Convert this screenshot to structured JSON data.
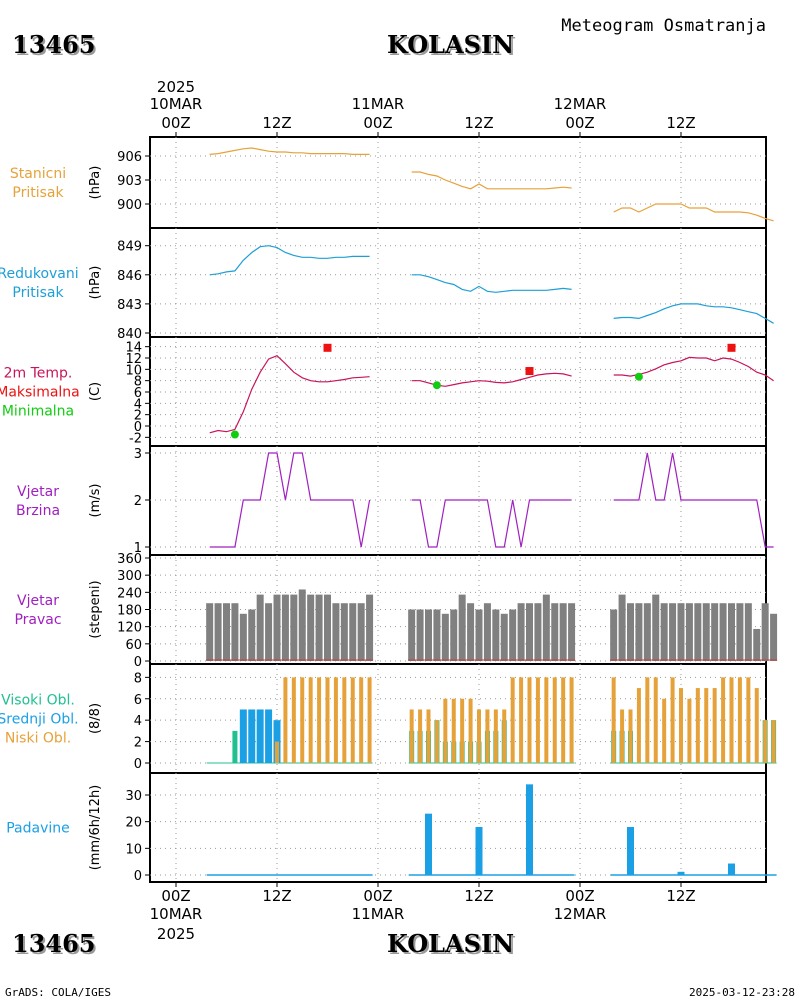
{
  "header": {
    "station_id": "13465",
    "station_name": "KOLASIN",
    "subtitle": "Meteogram Osmatranja"
  },
  "footer": {
    "credit": "GrADS: COLA/IGES",
    "timestamp": "2025-03-12-23:28"
  },
  "time_axis": {
    "top_year": "2025",
    "bottom_year": "2025",
    "dates": [
      "10MAR",
      "11MAR",
      "12MAR"
    ],
    "hours": [
      "00Z",
      "12Z",
      "00Z",
      "12Z",
      "00Z",
      "12Z"
    ]
  },
  "colors": {
    "pressure": "#e6a23a",
    "reduced": "#1e9fd6",
    "temp": "#c8145a",
    "tmax": "#ee1111",
    "tmin": "#11cc11",
    "wind": "#a020c0",
    "dir_bar": "#808080",
    "high_cloud": "#20c090",
    "mid_cloud": "#1ba0e6",
    "low_cloud": "#e6a23a",
    "precip": "#1ba0e6"
  },
  "chart_data": [
    {
      "type": "line",
      "panel": "pressure",
      "label_lines": [
        "Stanicni",
        "Pritisak"
      ],
      "unit": "(hPa)",
      "yticks": [
        "906",
        "903",
        "900"
      ],
      "ylim": [
        898,
        907.5
      ],
      "x_hours": [
        [
          4,
          5,
          6,
          7,
          8,
          9,
          10,
          11,
          12,
          13,
          14,
          15,
          16,
          17,
          18,
          19,
          20,
          21,
          22,
          23
        ],
        [
          28,
          29,
          30,
          31,
          32,
          33,
          34,
          35,
          36,
          37,
          38,
          39,
          40,
          41,
          42,
          43,
          44,
          45,
          46,
          47
        ],
        [
          52,
          53,
          54,
          55,
          56,
          57,
          58,
          59,
          60,
          61,
          62,
          63,
          64,
          65,
          66,
          67,
          68,
          69,
          70,
          71
        ]
      ],
      "values": [
        [
          906.2,
          906.3,
          906.5,
          906.7,
          906.9,
          907.0,
          906.8,
          906.6,
          906.5,
          906.5,
          906.4,
          906.4,
          906.3,
          906.3,
          906.3,
          906.3,
          906.3,
          906.2,
          906.2,
          906.2
        ],
        [
          904.0,
          904.0,
          903.7,
          903.5,
          903.0,
          902.6,
          902.2,
          901.9,
          902.5,
          901.9,
          901.9,
          901.9,
          901.9,
          901.9,
          901.9,
          901.9,
          901.9,
          902.0,
          902.1,
          902.0
        ],
        [
          899.0,
          899.5,
          899.5,
          899.0,
          899.5,
          900.0,
          900.0,
          900.0,
          900.0,
          899.5,
          899.5,
          899.5,
          899.0,
          899.0,
          899.0,
          899.0,
          898.9,
          898.6,
          898.2,
          897.9
        ]
      ]
    },
    {
      "type": "line",
      "panel": "reduced",
      "label_lines": [
        "Redukovani",
        "Pritisak"
      ],
      "unit": "(hPa)",
      "yticks": [
        "849",
        "846",
        "843",
        "840"
      ],
      "ylim": [
        840,
        850
      ],
      "x_hours": [
        [
          4,
          5,
          6,
          7,
          8,
          9,
          10,
          11,
          12,
          13,
          14,
          15,
          16,
          17,
          18,
          19,
          20,
          21,
          22,
          23
        ],
        [
          28,
          29,
          30,
          31,
          32,
          33,
          34,
          35,
          36,
          37,
          38,
          39,
          40,
          41,
          42,
          43,
          44,
          45,
          46,
          47
        ],
        [
          52,
          53,
          54,
          55,
          56,
          57,
          58,
          59,
          60,
          61,
          62,
          63,
          64,
          65,
          66,
          67,
          68,
          69,
          70,
          71
        ]
      ],
      "values": [
        [
          846.0,
          846.1,
          846.3,
          846.4,
          847.5,
          848.3,
          848.9,
          849.0,
          848.8,
          848.3,
          848.0,
          847.8,
          847.8,
          847.7,
          847.7,
          847.8,
          847.8,
          847.9,
          847.9,
          847.9
        ],
        [
          846.0,
          846.0,
          845.8,
          845.5,
          845.2,
          845.0,
          844.5,
          844.3,
          844.8,
          844.3,
          844.2,
          844.3,
          844.4,
          844.4,
          844.4,
          844.4,
          844.4,
          844.5,
          844.6,
          844.5
        ],
        [
          841.5,
          841.6,
          841.6,
          841.5,
          841.8,
          842.1,
          842.5,
          842.8,
          843.0,
          843.0,
          843.0,
          842.8,
          842.7,
          842.7,
          842.6,
          842.4,
          842.2,
          842.0,
          841.5,
          841.0
        ]
      ]
    },
    {
      "type": "line",
      "panel": "temperature",
      "label_lines": [
        "2m Temp.",
        "Maksimalna",
        "Minimalna"
      ],
      "unit": "(C)",
      "yticks": [
        "14",
        "12",
        "10",
        "8",
        "6",
        "4",
        "2",
        "0",
        "-2"
      ],
      "ylim": [
        -3,
        15
      ],
      "x_hours": [
        [
          4,
          5,
          6,
          7,
          8,
          9,
          10,
          11,
          12,
          13,
          14,
          15,
          16,
          17,
          18,
          19,
          20,
          21,
          22,
          23
        ],
        [
          28,
          29,
          30,
          31,
          32,
          33,
          34,
          35,
          36,
          37,
          38,
          39,
          40,
          41,
          42,
          43,
          44,
          45,
          46,
          47
        ],
        [
          52,
          53,
          54,
          55,
          56,
          57,
          58,
          59,
          60,
          61,
          62,
          63,
          64,
          65,
          66,
          67,
          68,
          69,
          70,
          71
        ]
      ],
      "values": [
        [
          -1.2,
          -0.8,
          -1.0,
          -0.6,
          2.5,
          6.5,
          9.5,
          11.8,
          12.4,
          11.0,
          9.5,
          8.5,
          8.0,
          7.8,
          7.8,
          8.0,
          8.2,
          8.5,
          8.6,
          8.7
        ],
        [
          8.0,
          8.0,
          7.6,
          7.2,
          7.0,
          7.3,
          7.6,
          7.8,
          8.0,
          7.9,
          7.7,
          7.6,
          7.8,
          8.2,
          8.6,
          9.0,
          9.2,
          9.3,
          9.2,
          8.8
        ],
        [
          9.0,
          9.0,
          8.8,
          9.1,
          9.5,
          10.1,
          10.8,
          11.2,
          11.5,
          12.1,
          12.0,
          12.0,
          11.5,
          12.0,
          11.8,
          11.2,
          10.5,
          9.5,
          9.0,
          8.0
        ]
      ],
      "max_markers": [
        {
          "hour": 18,
          "value": 13.8
        },
        {
          "hour": 42,
          "value": 9.7
        },
        {
          "hour": 66,
          "value": 13.8
        }
      ],
      "min_markers": [
        {
          "hour": 7,
          "value": -1.5
        },
        {
          "hour": 31,
          "value": 7.2
        },
        {
          "hour": 55,
          "value": 8.7
        }
      ]
    },
    {
      "type": "line",
      "panel": "wind_speed",
      "label_lines": [
        "Vjetar",
        "Brzina"
      ],
      "unit": "(m/s)",
      "yticks": [
        "3",
        "2",
        "1"
      ],
      "ylim": [
        1,
        3
      ],
      "x_hours": [
        [
          4,
          5,
          6,
          7,
          8,
          9,
          10,
          11,
          12,
          13,
          14,
          15,
          16,
          17,
          18,
          19,
          20,
          21,
          22,
          23
        ],
        [
          28,
          29,
          30,
          31,
          32,
          33,
          34,
          35,
          36,
          37,
          38,
          39,
          40,
          41,
          42,
          43,
          44,
          45,
          46,
          47
        ],
        [
          52,
          53,
          54,
          55,
          56,
          57,
          58,
          59,
          60,
          61,
          62,
          63,
          64,
          65,
          66,
          67,
          68,
          69,
          70,
          71
        ]
      ],
      "values": [
        [
          1,
          1,
          1,
          1,
          2,
          2,
          2,
          3,
          3,
          2,
          3,
          3,
          2,
          2,
          2,
          2,
          2,
          2,
          1,
          2
        ],
        [
          2,
          2,
          1,
          1,
          2,
          2,
          2,
          2,
          2,
          2,
          1,
          1,
          2,
          1,
          2,
          2,
          2,
          2,
          2,
          2
        ],
        [
          2,
          2,
          2,
          2,
          3,
          2,
          2,
          3,
          2,
          2,
          2,
          2,
          2,
          2,
          2,
          2,
          2,
          2,
          1,
          1
        ]
      ]
    },
    {
      "type": "bar",
      "panel": "wind_direction",
      "label_lines": [
        "Vjetar",
        "Pravac"
      ],
      "unit": "(stepeni)",
      "yticks": [
        "360",
        "300",
        "240",
        "180",
        "120",
        "60",
        "0"
      ],
      "ylim": [
        0,
        360
      ],
      "x_hours": [
        [
          4,
          5,
          6,
          7,
          8,
          9,
          10,
          11,
          12,
          13,
          14,
          15,
          16,
          17,
          18,
          19,
          20,
          21,
          22,
          23
        ],
        [
          28,
          29,
          30,
          31,
          32,
          33,
          34,
          35,
          36,
          37,
          38,
          39,
          40,
          41,
          42,
          43,
          44,
          45,
          46,
          47
        ],
        [
          52,
          53,
          54,
          55,
          56,
          57,
          58,
          59,
          60,
          61,
          62,
          63,
          64,
          65,
          66,
          67,
          68,
          69,
          70,
          71
        ]
      ],
      "values": [
        [
          202,
          202,
          202,
          202,
          165,
          180,
          232,
          202,
          232,
          232,
          232,
          250,
          232,
          232,
          232,
          202,
          202,
          202,
          202,
          232
        ],
        [
          180,
          180,
          180,
          180,
          165,
          180,
          232,
          202,
          180,
          202,
          180,
          165,
          180,
          202,
          202,
          202,
          232,
          202,
          202,
          202
        ],
        [
          180,
          232,
          202,
          202,
          202,
          232,
          202,
          202,
          202,
          202,
          202,
          202,
          202,
          202,
          202,
          202,
          202,
          112,
          202,
          165
        ]
      ]
    },
    {
      "type": "bar",
      "panel": "clouds",
      "label_lines": [
        "Visoki Obl.",
        "Srednji Obl.",
        "Niski Obl."
      ],
      "unit": "(8/8)",
      "yticks": [
        "8",
        "6",
        "4",
        "2",
        "0"
      ],
      "ylim": [
        0,
        8.5
      ],
      "x_hours": [
        [
          4,
          5,
          6,
          7,
          8,
          9,
          10,
          11,
          12,
          13,
          14,
          15,
          16,
          17,
          18,
          19,
          20,
          21,
          22,
          23
        ],
        [
          28,
          29,
          30,
          31,
          32,
          33,
          34,
          35,
          36,
          37,
          38,
          39,
          40,
          41,
          42,
          43,
          44,
          45,
          46,
          47
        ],
        [
          52,
          53,
          54,
          55,
          56,
          57,
          58,
          59,
          60,
          61,
          62,
          63,
          64,
          65,
          66,
          67,
          68,
          69,
          70,
          71
        ]
      ],
      "series": [
        {
          "name": "Visoki Obl.",
          "values": [
            [
              0,
              0,
              0,
              3,
              1,
              0,
              0,
              0,
              0,
              0,
              0,
              0,
              0,
              0,
              0,
              0,
              0,
              0,
              0,
              0
            ],
            [
              3,
              3,
              3,
              4,
              2,
              2,
              2,
              2,
              2,
              3,
              3,
              4,
              0,
              0,
              0,
              0,
              0,
              0,
              0,
              0
            ],
            [
              3,
              3,
              3,
              0,
              0,
              0,
              0,
              0,
              0,
              0,
              0,
              0,
              0,
              0,
              0,
              0,
              0,
              0,
              4,
              4
            ]
          ]
        },
        {
          "name": "Srednji Obl.",
          "values": [
            [
              0,
              0,
              0,
              0,
              5,
              5,
              5,
              5,
              4,
              0,
              0,
              0,
              0,
              0,
              0,
              0,
              0,
              0,
              0,
              0
            ],
            [
              0,
              0,
              0,
              0,
              0,
              0,
              0,
              0,
              0,
              0,
              0,
              0,
              0,
              0,
              0,
              0,
              0,
              0,
              0,
              0
            ],
            [
              0,
              0,
              0,
              0,
              0,
              0,
              0,
              0,
              0,
              0,
              0,
              0,
              0,
              0,
              0,
              0,
              0,
              0,
              0,
              0
            ]
          ]
        },
        {
          "name": "Niski Obl.",
          "values": [
            [
              0,
              0,
              0,
              0,
              0,
              0,
              0,
              0,
              2,
              8,
              8,
              8,
              8,
              8,
              8,
              8,
              8,
              8,
              8,
              8
            ],
            [
              5,
              5,
              5,
              4,
              6,
              6,
              6,
              6,
              5,
              5,
              5,
              5,
              8,
              8,
              8,
              8,
              8,
              8,
              8,
              8
            ],
            [
              8,
              5,
              5,
              7,
              8,
              8,
              6,
              8,
              7,
              6,
              7,
              7,
              7,
              8,
              8,
              8,
              8,
              7,
              4,
              4
            ]
          ]
        }
      ]
    },
    {
      "type": "bar",
      "panel": "precipitation",
      "label_lines": [
        "Padavine"
      ],
      "unit": "(mm/6h/12h)",
      "yticks": [
        "30",
        "20",
        "10",
        "0"
      ],
      "ylim": [
        0,
        36
      ],
      "bars": [
        {
          "hour": 30,
          "value": 23
        },
        {
          "hour": 36,
          "value": 18
        },
        {
          "hour": 42,
          "value": 34
        },
        {
          "hour": 54,
          "value": 18
        },
        {
          "hour": 60,
          "value": 1.2
        },
        {
          "hour": 66,
          "value": 4.3
        }
      ],
      "trace_range": [
        [
          4,
          23
        ],
        [
          28,
          47
        ],
        [
          52,
          71
        ]
      ]
    }
  ]
}
